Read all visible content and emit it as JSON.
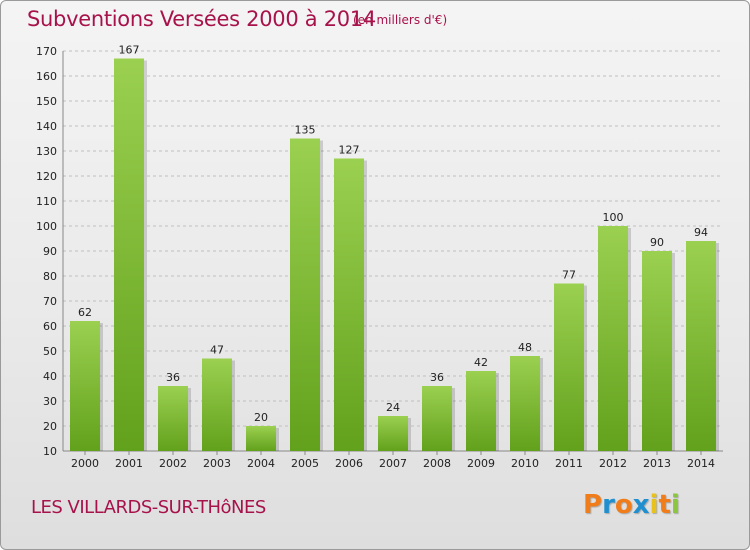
{
  "header": {
    "title": "Subventions Versées 2000 à 2014",
    "subtitle": "(en milliers d'€)"
  },
  "footer": {
    "commune": "LES VILLARDS-SUR-THôNES",
    "logo_letters": [
      "P",
      "r",
      "o",
      "x",
      "i",
      "t",
      "i"
    ],
    "logo_colors": [
      "#f07d1a",
      "#1f8fd0",
      "#f07d1a",
      "#1f8fd0",
      "#e8c21a",
      "#f07d1a",
      "#8cc63e"
    ]
  },
  "colors": {
    "bar_light": "#9bd050",
    "bar_dark": "#62a11c",
    "grid": "#bfbfbf",
    "accent": "#a8124b"
  },
  "chart_data": {
    "type": "bar",
    "categories": [
      "2000",
      "2001",
      "2002",
      "2003",
      "2004",
      "2005",
      "2006",
      "2007",
      "2008",
      "2009",
      "2010",
      "2011",
      "2012",
      "2013",
      "2014"
    ],
    "values": [
      62,
      167,
      36,
      47,
      20,
      135,
      127,
      24,
      36,
      42,
      48,
      77,
      100,
      90,
      94
    ],
    "ylim": [
      10,
      170
    ],
    "yticks": [
      10,
      20,
      30,
      40,
      50,
      60,
      70,
      80,
      90,
      100,
      110,
      120,
      130,
      140,
      150,
      160,
      170
    ],
    "grid": true,
    "legend": "none"
  }
}
